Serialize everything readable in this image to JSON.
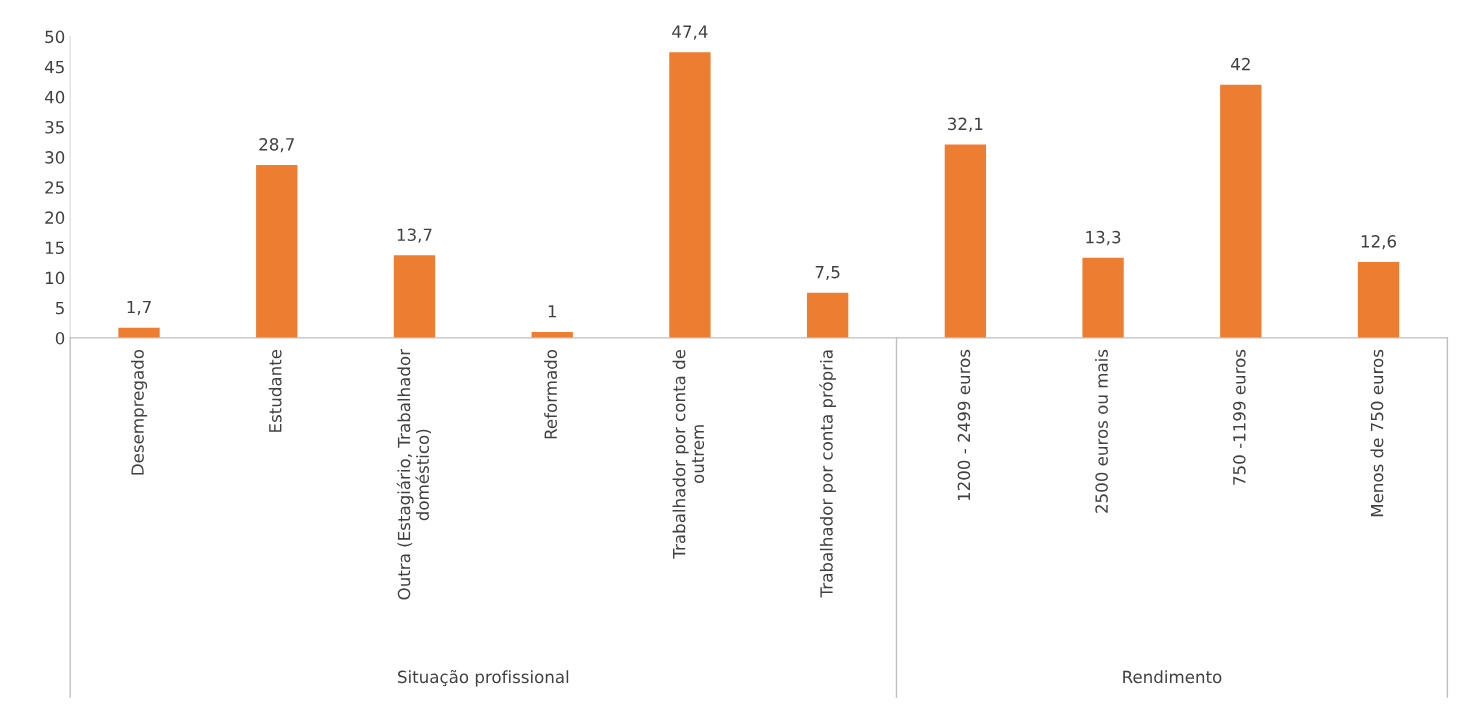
{
  "chart_data": {
    "type": "bar",
    "categories": [
      "Desempregado",
      "Estudante",
      "Outra (Estagiário, Trabalhador\ndoméstico)",
      "Reformado",
      "Trabalhador por conta de\noutrem",
      "Trabalhador por conta própria",
      "1200 - 2499 euros",
      "2500 euros ou mais",
      "750 -1199 euros",
      "Menos de 750 euros"
    ],
    "values": [
      1.7,
      28.7,
      13.7,
      1,
      47.4,
      7.5,
      32.1,
      13.3,
      42,
      12.6
    ],
    "value_labels": [
      "1,7",
      "28,7",
      "13,7",
      "1",
      "47,4",
      "7,5",
      "32,1",
      "13,3",
      "42",
      "12,6"
    ],
    "color": "#ed7d31",
    "ylim": [
      0,
      50
    ],
    "yticks": [
      0,
      5,
      10,
      15,
      20,
      25,
      30,
      35,
      40,
      45,
      50
    ],
    "grid": false,
    "annotations": [
      "Situação profissional",
      "Rendimento"
    ]
  }
}
